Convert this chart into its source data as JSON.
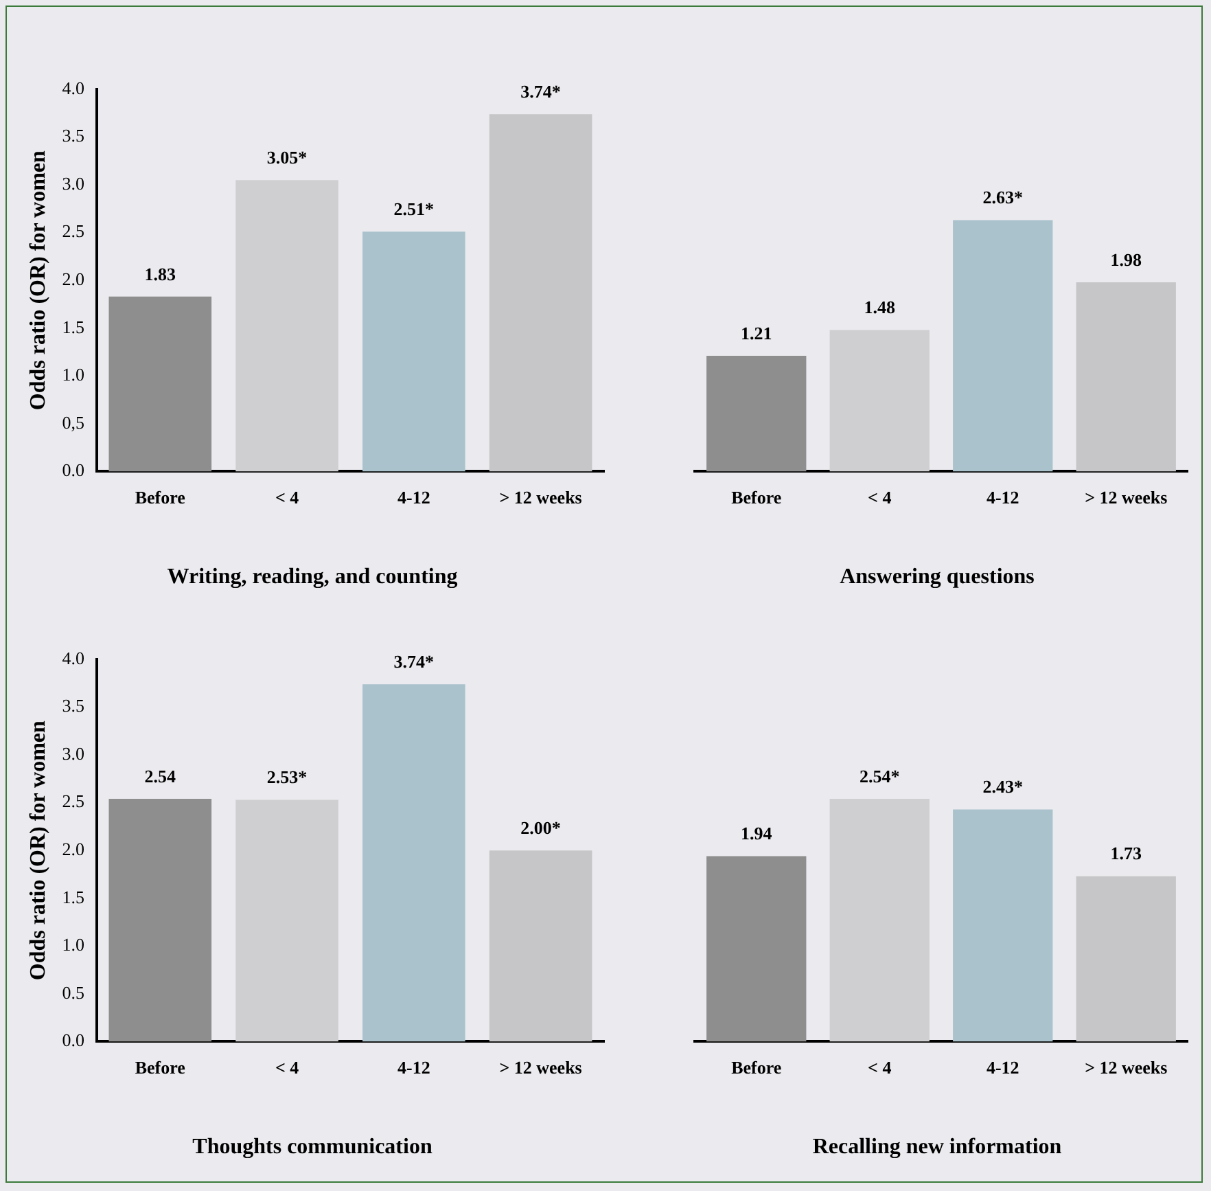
{
  "chart_data": [
    {
      "type": "bar",
      "title": "Writing, reading, and counting",
      "ylabel": "Odds ratio (OR) for women",
      "categories": [
        "Before",
        "< 4",
        "4-12",
        "> 12 weeks"
      ],
      "values": [
        1.83,
        3.05,
        2.51,
        3.74
      ],
      "value_labels": [
        "1.83",
        "3.05*",
        "2.51*",
        "3.74*"
      ],
      "colors": [
        "#8e8e8e",
        "#cfcfd2",
        "#a9c2cc",
        "#c6c6c8"
      ],
      "ylim": [
        0,
        4
      ],
      "yticks": [
        {
          "value": 0,
          "label": "0.0"
        },
        {
          "value": 0.5,
          "label": "0,5"
        },
        {
          "value": 1,
          "label": "1.0"
        },
        {
          "value": 1.5,
          "label": "1.5"
        },
        {
          "value": 2,
          "label": "2.0"
        },
        {
          "value": 2.5,
          "label": "2.5"
        },
        {
          "value": 3,
          "label": "3.0"
        },
        {
          "value": 3.5,
          "label": "3.5"
        },
        {
          "value": 4,
          "label": "4.0"
        }
      ]
    },
    {
      "type": "bar",
      "title": "Answering questions",
      "categories": [
        "Before",
        "< 4",
        "4-12",
        "> 12 weeks"
      ],
      "values": [
        1.21,
        1.48,
        2.63,
        1.98
      ],
      "value_labels": [
        "1.21",
        "1.48",
        "2.63*",
        "1.98"
      ],
      "colors": [
        "#8e8e8e",
        "#cfcfd2",
        "#a9c2cc",
        "#c6c6c8"
      ],
      "ylim": [
        0,
        4
      ],
      "tick_labels": "x"
    },
    {
      "type": "bar",
      "title": "Thoughts communication",
      "ylabel": "Odds ratio (OR) for women",
      "categories": [
        "Before",
        "< 4",
        "4-12",
        "> 12 weeks"
      ],
      "values": [
        2.54,
        2.53,
        3.74,
        2.0
      ],
      "value_labels": [
        "2.54",
        "2.53*",
        "3.74*",
        "2.00*"
      ],
      "colors": [
        "#8e8e8e",
        "#cfcfd2",
        "#a9c2cc",
        "#c6c6c8"
      ],
      "ylim": [
        0,
        4
      ],
      "yticks": [
        {
          "value": 0,
          "label": "0.0"
        },
        {
          "value": 0.5,
          "label": "0.5"
        },
        {
          "value": 1,
          "label": "1.0"
        },
        {
          "value": 1.5,
          "label": "1.5"
        },
        {
          "value": 2,
          "label": "2.0"
        },
        {
          "value": 2.5,
          "label": "2.5"
        },
        {
          "value": 3,
          "label": "3.0"
        },
        {
          "value": 3.5,
          "label": "3.5"
        },
        {
          "value": 4,
          "label": "4.0"
        }
      ]
    },
    {
      "type": "bar",
      "title": "Recalling new information",
      "categories": [
        "Before",
        "< 4",
        "4-12",
        "> 12 weeks"
      ],
      "values": [
        1.94,
        2.54,
        2.43,
        1.73
      ],
      "value_labels": [
        "1.94",
        "2.54*",
        "2.43*",
        "1.73"
      ],
      "colors": [
        "#8e8e8e",
        "#cfcfd2",
        "#a9c2cc",
        "#c6c6c8"
      ],
      "ylim": [
        0,
        4
      ],
      "tick_labels": "x"
    }
  ]
}
